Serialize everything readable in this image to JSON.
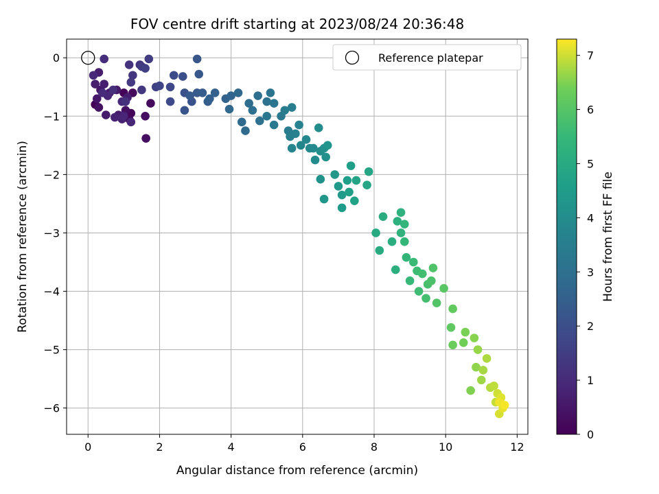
{
  "chart_data": {
    "type": "scatter",
    "title": "FOV centre drift starting at 2023/08/24 20:36:48",
    "xlabel": "Angular distance from reference (arcmin)",
    "ylabel": "Rotation from reference (arcmin)",
    "xlim": [
      -0.6,
      12.3
    ],
    "ylim": [
      -6.45,
      0.32
    ],
    "xticks": [
      0,
      2,
      4,
      6,
      8,
      10,
      12
    ],
    "yticks": [
      0,
      -1,
      -2,
      -3,
      -4,
      -5,
      -6
    ],
    "grid": true,
    "legend": {
      "placement": "top-right",
      "entries": [
        "Reference platepar"
      ]
    },
    "reference_point": {
      "x": 0,
      "y": 0,
      "label": "Reference platepar"
    },
    "colorbar": {
      "label": "Hours from first FF file",
      "range": [
        0,
        7.3
      ],
      "ticks": [
        0,
        1,
        2,
        3,
        4,
        5,
        6,
        7
      ],
      "colormap": "viridis"
    },
    "points": [
      [
        0.2,
        -0.8,
        0.05
      ],
      [
        1.0,
        -0.6,
        0.1
      ],
      [
        1.2,
        -0.95,
        0.1
      ],
      [
        1.15,
        -1.05,
        0.15
      ],
      [
        1.25,
        -0.6,
        0.2
      ],
      [
        1.75,
        -0.78,
        0.2
      ],
      [
        1.6,
        -1.0,
        0.3
      ],
      [
        1.62,
        -1.38,
        0.3
      ],
      [
        1.05,
        -0.9,
        0.35
      ],
      [
        0.3,
        -0.85,
        0.4
      ],
      [
        0.25,
        -0.7,
        0.5
      ],
      [
        0.35,
        -0.55,
        0.5
      ],
      [
        0.6,
        -0.6,
        0.55
      ],
      [
        0.8,
        -0.55,
        0.55
      ],
      [
        0.5,
        -0.98,
        0.6
      ],
      [
        0.85,
        -0.98,
        0.6
      ],
      [
        0.2,
        -0.45,
        0.65
      ],
      [
        0.3,
        -0.25,
        0.65
      ],
      [
        0.45,
        -0.45,
        0.7
      ],
      [
        1.1,
        -0.68,
        0.7
      ],
      [
        0.75,
        -1.02,
        0.75
      ],
      [
        0.95,
        -1.05,
        0.8
      ],
      [
        1.0,
        -1.0,
        0.85
      ],
      [
        1.2,
        -1.1,
        0.9
      ],
      [
        0.55,
        -0.65,
        0.9
      ],
      [
        0.15,
        -0.3,
        0.95
      ],
      [
        0.4,
        -0.6,
        1.0
      ],
      [
        0.95,
        -0.75,
        1.0
      ],
      [
        0.45,
        -0.02,
        1.05
      ],
      [
        0.7,
        -0.55,
        1.1
      ],
      [
        1.05,
        -0.75,
        1.15
      ],
      [
        1.15,
        -0.12,
        1.2
      ],
      [
        1.45,
        -0.12,
        1.25
      ],
      [
        1.25,
        -0.3,
        1.3
      ],
      [
        1.5,
        -0.55,
        1.35
      ],
      [
        1.2,
        -0.42,
        1.4
      ],
      [
        1.5,
        -0.15,
        1.45
      ],
      [
        1.7,
        -0.02,
        1.5
      ],
      [
        1.6,
        -0.18,
        1.55
      ],
      [
        1.9,
        -0.5,
        1.6
      ],
      [
        2.0,
        -0.48,
        1.7
      ],
      [
        2.3,
        -0.5,
        1.8
      ],
      [
        2.3,
        -0.75,
        1.85
      ],
      [
        2.4,
        -0.3,
        1.9
      ],
      [
        2.65,
        -0.32,
        2.0
      ],
      [
        2.7,
        -0.6,
        2.05
      ],
      [
        2.9,
        -0.75,
        2.1
      ],
      [
        2.7,
        -0.9,
        2.15
      ],
      [
        3.05,
        -0.02,
        2.2
      ],
      [
        3.1,
        -0.28,
        2.25
      ],
      [
        3.05,
        -0.6,
        2.3
      ],
      [
        2.85,
        -0.65,
        2.35
      ],
      [
        3.2,
        -0.6,
        2.4
      ],
      [
        3.35,
        -0.75,
        2.45
      ],
      [
        3.4,
        -0.7,
        2.5
      ],
      [
        3.55,
        -0.6,
        2.55
      ],
      [
        3.85,
        -0.7,
        2.6
      ],
      [
        4.0,
        -0.65,
        2.65
      ],
      [
        3.95,
        -0.88,
        2.7
      ],
      [
        4.2,
        -0.6,
        2.75
      ],
      [
        4.3,
        -1.1,
        2.8
      ],
      [
        4.4,
        -1.25,
        2.85
      ],
      [
        4.5,
        -0.78,
        2.9
      ],
      [
        4.6,
        -0.9,
        2.95
      ],
      [
        4.75,
        -0.65,
        3.0
      ],
      [
        4.8,
        -1.08,
        3.05
      ],
      [
        5.0,
        -0.75,
        3.1
      ],
      [
        5.1,
        -0.6,
        3.15
      ],
      [
        5.2,
        -0.78,
        3.2
      ],
      [
        5.0,
        -1.0,
        3.25
      ],
      [
        5.2,
        -1.15,
        3.3
      ],
      [
        5.4,
        -1.0,
        3.35
      ],
      [
        5.5,
        -0.9,
        3.4
      ],
      [
        5.6,
        -1.25,
        3.45
      ],
      [
        5.7,
        -0.85,
        3.5
      ],
      [
        5.65,
        -1.35,
        3.55
      ],
      [
        5.8,
        -1.3,
        3.6
      ],
      [
        5.9,
        -1.15,
        3.65
      ],
      [
        5.7,
        -1.55,
        3.7
      ],
      [
        5.95,
        -1.5,
        3.75
      ],
      [
        6.1,
        -1.4,
        3.8
      ],
      [
        6.2,
        -1.55,
        3.85
      ],
      [
        6.3,
        -1.55,
        3.9
      ],
      [
        6.35,
        -1.75,
        3.95
      ],
      [
        6.45,
        -1.2,
        4.0
      ],
      [
        6.5,
        -1.6,
        4.05
      ],
      [
        6.6,
        -1.55,
        4.1
      ],
      [
        6.65,
        -1.7,
        4.15
      ],
      [
        6.5,
        -2.08,
        4.2
      ],
      [
        6.7,
        -1.5,
        4.25
      ],
      [
        6.6,
        -2.42,
        4.3
      ],
      [
        6.9,
        -2.0,
        4.35
      ],
      [
        7.0,
        -2.2,
        4.4
      ],
      [
        7.1,
        -2.35,
        4.45
      ],
      [
        7.1,
        -2.57,
        4.5
      ],
      [
        7.25,
        -2.1,
        4.55
      ],
      [
        7.35,
        -1.85,
        4.6
      ],
      [
        7.3,
        -2.3,
        4.65
      ],
      [
        7.45,
        -2.45,
        4.7
      ],
      [
        7.5,
        -2.1,
        4.75
      ],
      [
        7.85,
        -1.95,
        4.8
      ],
      [
        7.8,
        -2.18,
        4.85
      ],
      [
        8.05,
        -3.0,
        4.95
      ],
      [
        8.15,
        -3.3,
        5.0
      ],
      [
        8.25,
        -2.72,
        5.05
      ],
      [
        8.5,
        -3.15,
        5.1
      ],
      [
        8.6,
        -3.63,
        5.15
      ],
      [
        8.65,
        -2.8,
        5.2
      ],
      [
        8.75,
        -2.65,
        5.25
      ],
      [
        8.75,
        -3.0,
        5.3
      ],
      [
        8.85,
        -2.85,
        5.35
      ],
      [
        8.9,
        -3.42,
        5.4
      ],
      [
        8.85,
        -3.15,
        5.45
      ],
      [
        9.0,
        -3.82,
        5.5
      ],
      [
        9.1,
        -3.5,
        5.55
      ],
      [
        9.2,
        -3.65,
        5.6
      ],
      [
        9.25,
        -4.0,
        5.65
      ],
      [
        9.35,
        -3.7,
        5.7
      ],
      [
        9.45,
        -4.12,
        5.75
      ],
      [
        9.5,
        -3.88,
        5.8
      ],
      [
        9.6,
        -3.82,
        5.85
      ],
      [
        9.65,
        -3.6,
        5.9
      ],
      [
        9.75,
        -4.2,
        5.95
      ],
      [
        9.95,
        -3.95,
        6.05
      ],
      [
        10.15,
        -4.62,
        6.15
      ],
      [
        10.2,
        -4.3,
        6.2
      ],
      [
        10.2,
        -4.92,
        6.3
      ],
      [
        10.5,
        -4.88,
        6.4
      ],
      [
        10.55,
        -4.7,
        6.45
      ],
      [
        10.7,
        -5.7,
        6.5
      ],
      [
        10.8,
        -4.8,
        6.55
      ],
      [
        10.85,
        -5.3,
        6.6
      ],
      [
        10.9,
        -5.0,
        6.65
      ],
      [
        11.0,
        -5.52,
        6.7
      ],
      [
        11.05,
        -5.35,
        6.75
      ],
      [
        11.15,
        -5.15,
        6.8
      ],
      [
        11.25,
        -5.65,
        6.85
      ],
      [
        11.35,
        -5.62,
        6.9
      ],
      [
        11.4,
        -5.9,
        6.95
      ],
      [
        11.45,
        -5.75,
        7.0
      ],
      [
        11.5,
        -6.1,
        7.05
      ],
      [
        11.55,
        -5.82,
        7.1
      ],
      [
        11.6,
        -6.0,
        7.15
      ],
      [
        11.5,
        -5.9,
        7.2
      ],
      [
        11.65,
        -5.95,
        7.25
      ]
    ]
  }
}
